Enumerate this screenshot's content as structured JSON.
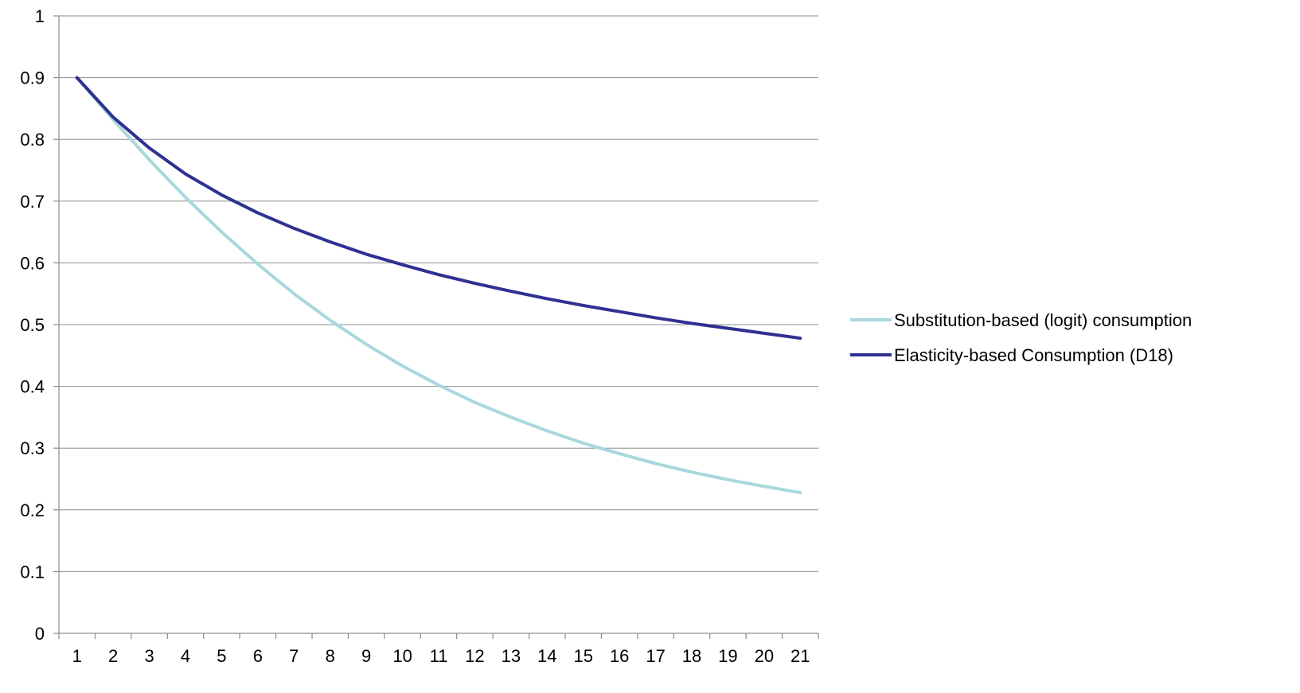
{
  "chart_data": {
    "type": "line",
    "title": "",
    "xlabel": "",
    "ylabel": "",
    "x": [
      1,
      2,
      3,
      4,
      5,
      6,
      7,
      8,
      9,
      10,
      11,
      12,
      13,
      14,
      15,
      16,
      17,
      18,
      19,
      20,
      21
    ],
    "ylim": [
      0,
      1
    ],
    "yticks": [
      "0",
      "0.1",
      "0.2",
      "0.3",
      "0.4",
      "0.5",
      "0.6",
      "0.7",
      "0.8",
      "0.9",
      "1"
    ],
    "grid": true,
    "legend_position": "right",
    "series": [
      {
        "name": "Substitution-based (logit) consumption",
        "color": "#a8d8dc",
        "values": [
          0.9,
          0.832,
          0.767,
          0.706,
          0.65,
          0.598,
          0.55,
          0.507,
          0.468,
          0.433,
          0.402,
          0.374,
          0.35,
          0.328,
          0.308,
          0.291,
          0.275,
          0.261,
          0.249,
          0.238,
          0.228
        ]
      },
      {
        "name": "Elasticity-based Consumption (D18)",
        "color": "#2e3192",
        "values": [
          0.9,
          0.836,
          0.786,
          0.744,
          0.71,
          0.681,
          0.656,
          0.634,
          0.614,
          0.597,
          0.581,
          0.567,
          0.554,
          0.542,
          0.531,
          0.521,
          0.511,
          0.502,
          0.494,
          0.486,
          0.478
        ]
      }
    ]
  }
}
